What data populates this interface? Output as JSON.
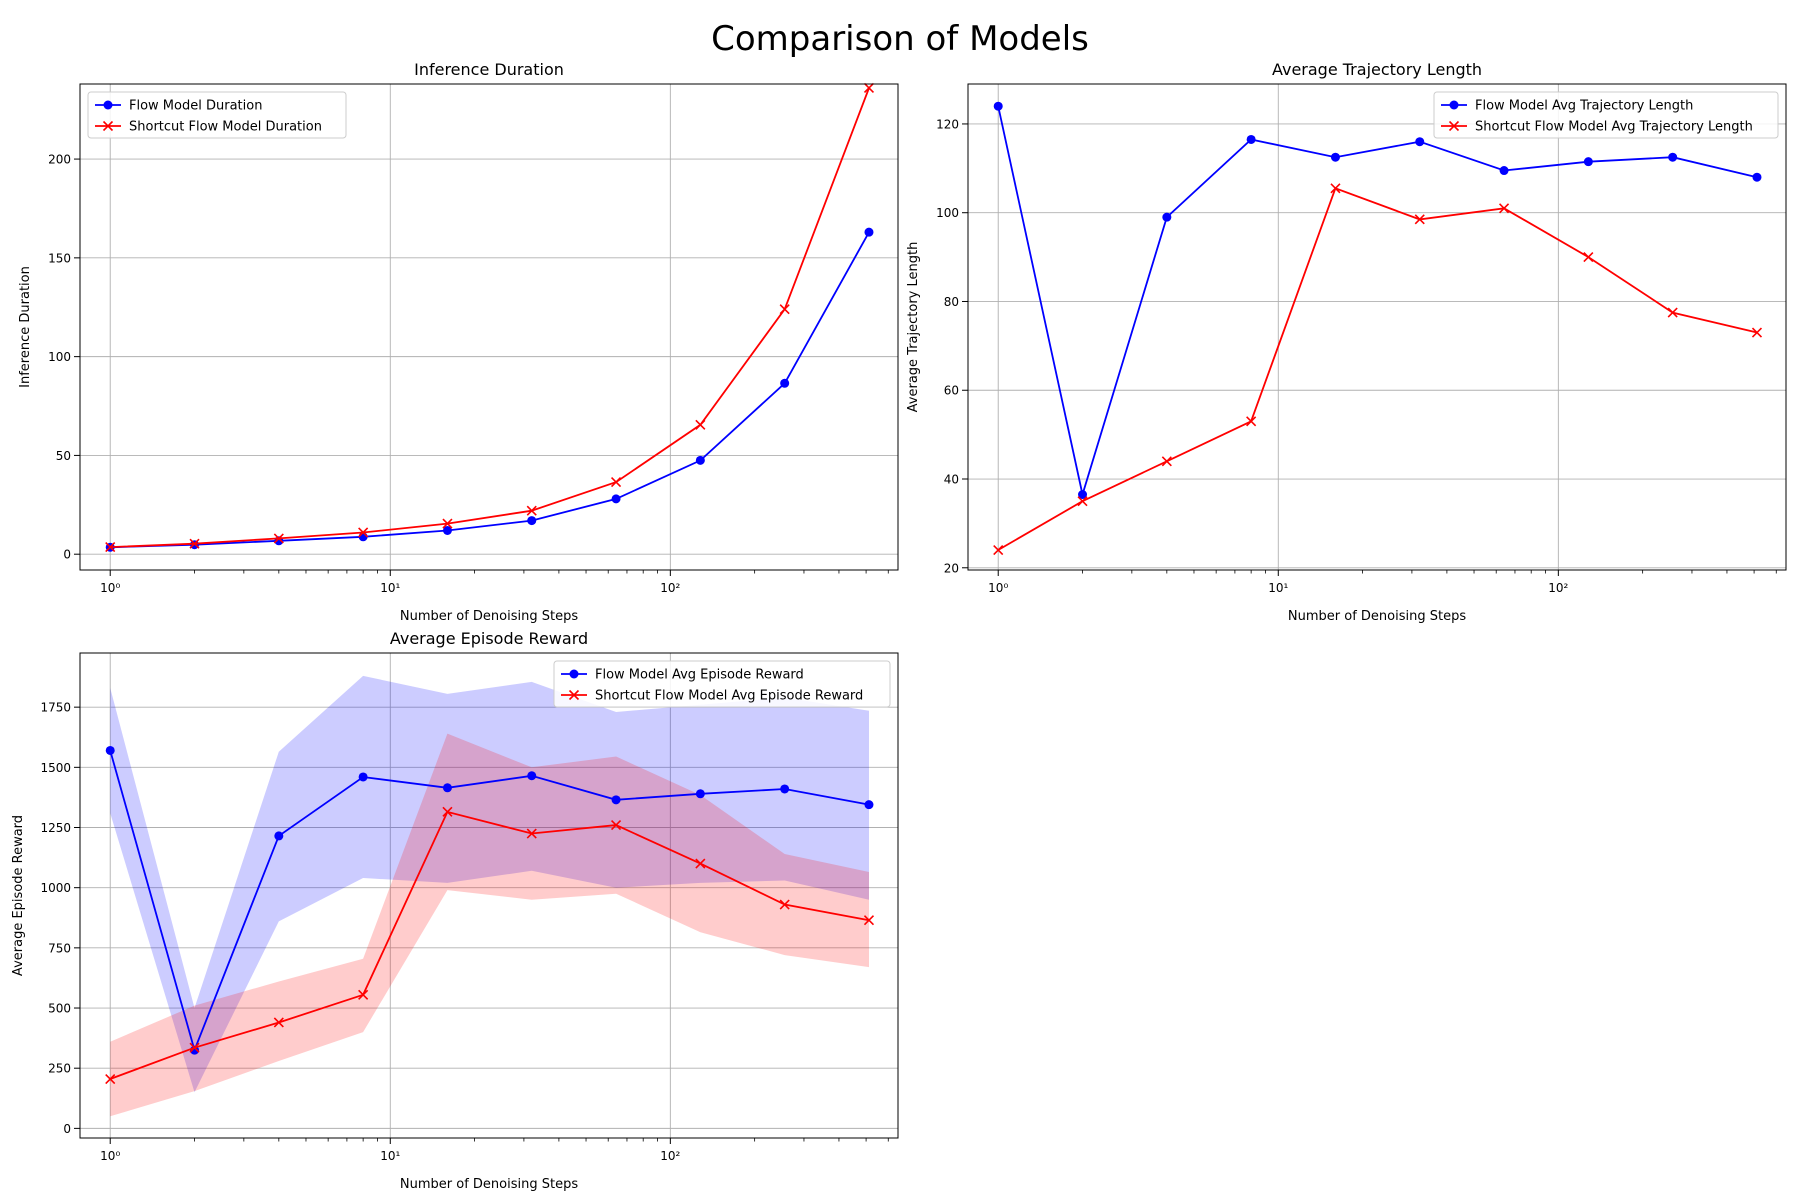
{
  "figure_title": "Comparison of Models",
  "colors": {
    "flow": "#0000ff",
    "shortcut": "#ff0000",
    "grid": "#b0b0b0",
    "band_flow": "#0000ff",
    "band_shortcut": "#ff0000"
  },
  "chart_data": [
    {
      "type": "line",
      "title": "Inference Duration",
      "xlabel": "Number of Denoising Steps",
      "ylabel": "Inference Duration",
      "xscale": "log",
      "xlim": [
        0.78,
        650
      ],
      "ylim": [
        -8,
        238
      ],
      "xticks": [
        {
          "value": 1,
          "label": "10⁰"
        },
        {
          "value": 10,
          "label": "10¹"
        },
        {
          "value": 100,
          "label": "10²"
        }
      ],
      "yticks": [
        {
          "value": 0,
          "label": "0"
        },
        {
          "value": 50,
          "label": "50"
        },
        {
          "value": 100,
          "label": "100"
        },
        {
          "value": 150,
          "label": "150"
        },
        {
          "value": 200,
          "label": "200"
        }
      ],
      "grid": true,
      "legend": "top-left",
      "x": [
        1,
        2,
        4,
        8,
        16,
        32,
        64,
        128,
        256,
        512
      ],
      "series": [
        {
          "name": "Flow Model Duration",
          "marker": "circle",
          "color": "#0000ff",
          "values": [
            3.5,
            4.8,
            6.8,
            8.8,
            12,
            17,
            28,
            47.5,
            86.5,
            163
          ]
        },
        {
          "name": "Shortcut Flow Model Duration",
          "marker": "x",
          "color": "#ff0000",
          "values": [
            3.6,
            5.3,
            8,
            11,
            15.5,
            22,
            36.5,
            65.5,
            124,
            236
          ]
        }
      ]
    },
    {
      "type": "line",
      "title": "Average Trajectory Length",
      "xlabel": "Number of Denoising Steps",
      "ylabel": "Average Trajectory Length",
      "xscale": "log",
      "xlim": [
        0.78,
        650
      ],
      "ylim": [
        19.5,
        129
      ],
      "xticks": [
        {
          "value": 1,
          "label": "10⁰"
        },
        {
          "value": 10,
          "label": "10¹"
        },
        {
          "value": 100,
          "label": "10²"
        }
      ],
      "yticks": [
        {
          "value": 20,
          "label": "20"
        },
        {
          "value": 40,
          "label": "40"
        },
        {
          "value": 60,
          "label": "60"
        },
        {
          "value": 80,
          "label": "80"
        },
        {
          "value": 100,
          "label": "100"
        },
        {
          "value": 120,
          "label": "120"
        }
      ],
      "grid": true,
      "legend": "top-right",
      "x": [
        1,
        2,
        4,
        8,
        16,
        32,
        64,
        128,
        256,
        512
      ],
      "series": [
        {
          "name": "Flow Model Avg Trajectory Length",
          "marker": "circle",
          "color": "#0000ff",
          "values": [
            124,
            36.5,
            99,
            116.5,
            112.5,
            116,
            109.5,
            111.5,
            112.5,
            108
          ]
        },
        {
          "name": "Shortcut Flow Model Avg Trajectory Length",
          "marker": "x",
          "color": "#ff0000",
          "values": [
            24,
            35,
            44,
            53,
            105.5,
            98.5,
            101,
            90,
            77.5,
            73
          ]
        }
      ]
    },
    {
      "type": "line",
      "title": "Average Episode Reward",
      "xlabel": "Number of Denoising Steps",
      "ylabel": "Average Episode Reward",
      "xscale": "log",
      "xlim": [
        0.78,
        650
      ],
      "ylim": [
        -40,
        1975
      ],
      "xticks": [
        {
          "value": 1,
          "label": "10⁰"
        },
        {
          "value": 10,
          "label": "10¹"
        },
        {
          "value": 100,
          "label": "10²"
        }
      ],
      "yticks": [
        {
          "value": 0,
          "label": "0"
        },
        {
          "value": 250,
          "label": "250"
        },
        {
          "value": 500,
          "label": "500"
        },
        {
          "value": 750,
          "label": "750"
        },
        {
          "value": 1000,
          "label": "1000"
        },
        {
          "value": 1250,
          "label": "1250"
        },
        {
          "value": 1500,
          "label": "1500"
        },
        {
          "value": 1750,
          "label": "1750"
        }
      ],
      "grid": true,
      "legend": "top-right",
      "x": [
        1,
        2,
        4,
        8,
        16,
        32,
        64,
        128,
        256,
        512
      ],
      "series": [
        {
          "name": "Flow Model Avg Episode Reward",
          "marker": "circle",
          "color": "#0000ff",
          "values": [
            1570,
            325,
            1215,
            1460,
            1415,
            1465,
            1365,
            1390,
            1410,
            1345
          ],
          "lower": [
            1310,
            150,
            860,
            1040,
            1020,
            1070,
            1000,
            1020,
            1030,
            950
          ],
          "upper": [
            1830,
            500,
            1565,
            1880,
            1805,
            1855,
            1730,
            1760,
            1790,
            1735
          ]
        },
        {
          "name": "Shortcut Flow Model Avg Episode Reward",
          "marker": "x",
          "color": "#ff0000",
          "values": [
            205,
            335,
            440,
            555,
            1315,
            1225,
            1260,
            1100,
            930,
            865
          ],
          "lower": [
            50,
            155,
            280,
            400,
            990,
            950,
            975,
            815,
            720,
            670
          ],
          "upper": [
            360,
            510,
            610,
            705,
            1640,
            1500,
            1545,
            1385,
            1140,
            1065
          ]
        }
      ]
    }
  ]
}
